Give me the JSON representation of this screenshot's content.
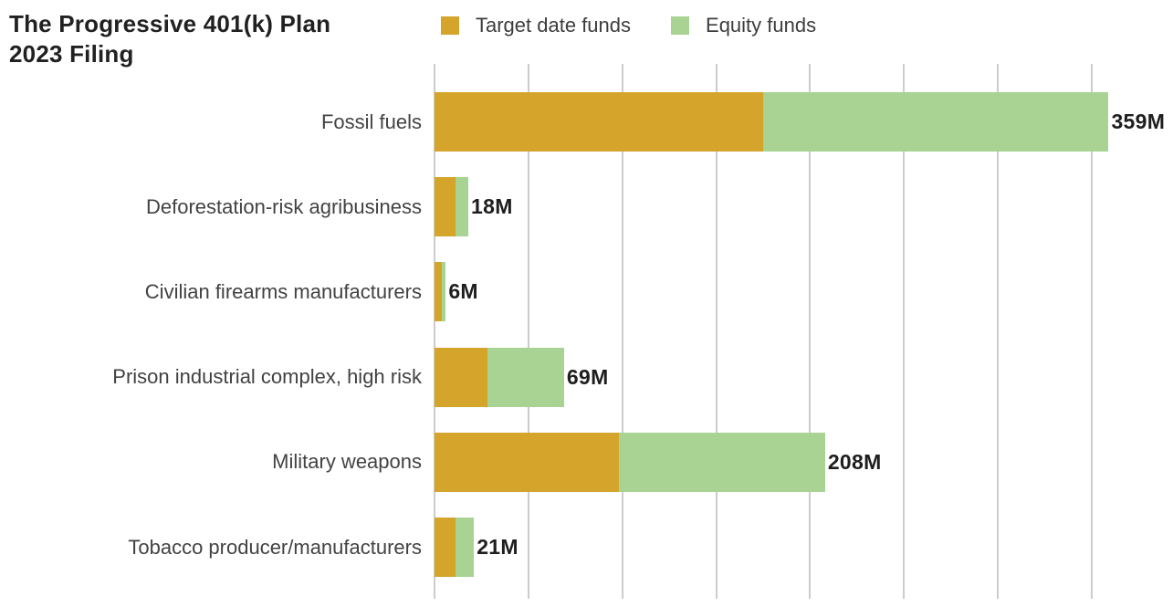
{
  "header": {
    "title_line1": "The Progressive 401(k) Plan",
    "title_line2": "2023 Filing"
  },
  "legend": [
    {
      "label": "Target date funds",
      "color": "#D5A42A"
    },
    {
      "label": "Equity funds",
      "color": "#A8D392"
    }
  ],
  "chart_data": {
    "type": "bar",
    "orientation": "horizontal",
    "stacked": true,
    "title": "The Progressive 401(k) Plan 2023 Filing",
    "categories": [
      "Fossil fuels",
      "Deforestation-risk agribusiness",
      "Civilian firearms manufacturers",
      "Prison industrial complex, high risk",
      "Military weapons",
      "Tobacco producer/manufacturers"
    ],
    "series": [
      {
        "name": "Target date funds",
        "color": "#D5A42A",
        "values": [
          175,
          11,
          4,
          28,
          98,
          11
        ]
      },
      {
        "name": "Equity funds",
        "color": "#A8D392",
        "values": [
          184,
          7,
          2,
          41,
          110,
          10
        ]
      }
    ],
    "totals": [
      359,
      18,
      6,
      69,
      208,
      21
    ],
    "total_labels": [
      "359M",
      "18M",
      "6M",
      "69M",
      "208M",
      "21M"
    ],
    "value_unit": "M",
    "xlim": [
      0,
      393
    ],
    "gridlines": [
      0,
      50,
      100,
      150,
      200,
      250,
      300,
      350
    ],
    "grid_color": "#cccccc",
    "x_tick_labels_visible": false,
    "legend_position": "top"
  }
}
